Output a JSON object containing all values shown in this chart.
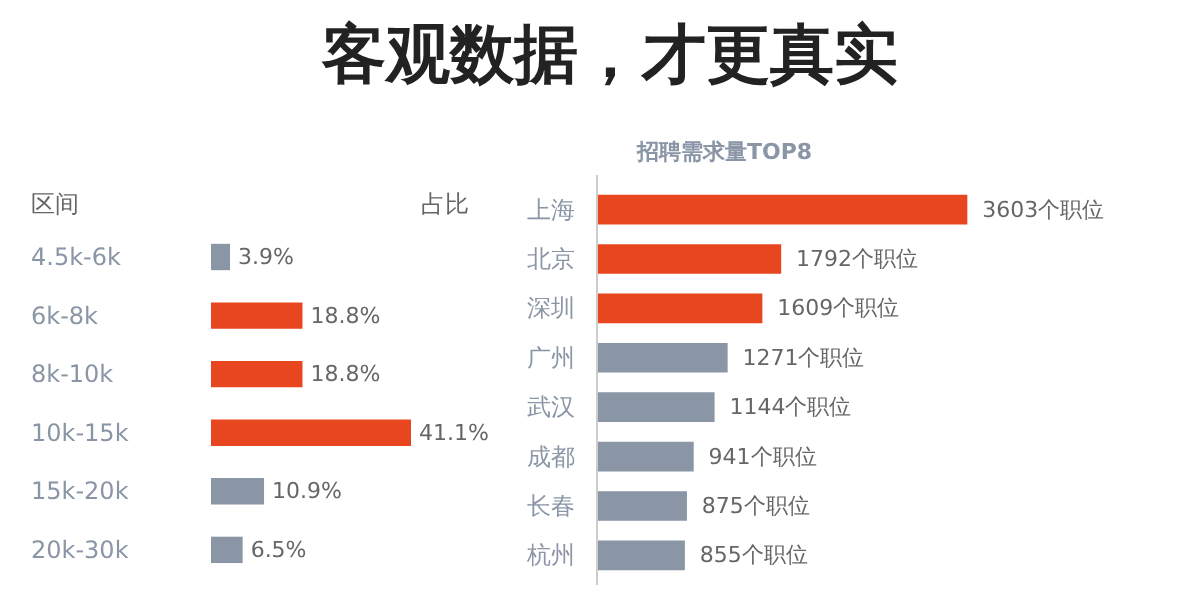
{
  "chart_data": [
    {
      "type": "bar",
      "orientation": "horizontal",
      "title": "客观数据，才更真实",
      "ylabel": "区间",
      "xlabel": "占比",
      "categories": [
        "4.5k-6k",
        "6k-8k",
        "8k-10k",
        "10k-15k",
        "15k-20k",
        "20k-30k"
      ],
      "values": [
        3.9,
        18.8,
        18.8,
        41.1,
        10.9,
        6.5
      ],
      "colors": [
        "#8a95a5",
        "#e8461e",
        "#e8461e",
        "#e8461e",
        "#8a95a5",
        "#8a95a5"
      ],
      "value_labels": [
        "3.9%",
        "18.8%",
        "18.8%",
        "41.1%",
        "10.9%",
        "6.5%"
      ]
    },
    {
      "type": "bar",
      "orientation": "horizontal",
      "title": "招聘需求量TOP8",
      "categories": [
        "上海",
        "北京",
        "深圳",
        "广州",
        "武汉",
        "成都",
        "长春",
        "杭州"
      ],
      "values": [
        3603,
        1792,
        1609,
        1271,
        1144,
        941,
        875,
        855
      ],
      "colors": [
        "#e8461e",
        "#e8461e",
        "#e8461e",
        "#8a95a5",
        "#8a95a5",
        "#8a95a5",
        "#8a95a5",
        "#8a95a5"
      ],
      "value_labels": [
        "3603个职位",
        "1792个职位",
        "1609个职位",
        "1271个职位",
        "1144个职位",
        "941个职位",
        "875个职位",
        "855个职位"
      ]
    }
  ]
}
